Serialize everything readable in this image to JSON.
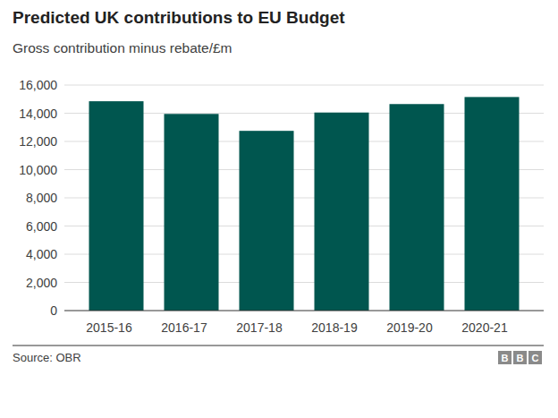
{
  "chart_data": {
    "type": "bar",
    "title": "Predicted UK contributions to EU Budget",
    "subtitle": "Gross contribution minus rebate/£m",
    "source": "Source: OBR",
    "logo": [
      "B",
      "B",
      "C"
    ],
    "categories": [
      "2015-16",
      "2016-17",
      "2017-18",
      "2018-19",
      "2019-20",
      "2020-21"
    ],
    "values": [
      14850,
      13950,
      12750,
      14050,
      14650,
      15150
    ],
    "color": "#00564f",
    "ylim": [
      0,
      16000
    ],
    "yticks": [
      0,
      {
        "value": 2000,
        "label": "2,000"
      },
      {
        "value": 4000,
        "label": "4,000"
      },
      {
        "value": 6000,
        "label": "6,000"
      },
      {
        "value": 8000,
        "label": "8,000"
      },
      {
        "value": 10000,
        "label": "10,000"
      },
      {
        "value": 12000,
        "label": "12,000"
      },
      {
        "value": 14000,
        "label": "14,000"
      },
      {
        "value": 16000,
        "label": "16,000"
      }
    ],
    "grid": true
  }
}
